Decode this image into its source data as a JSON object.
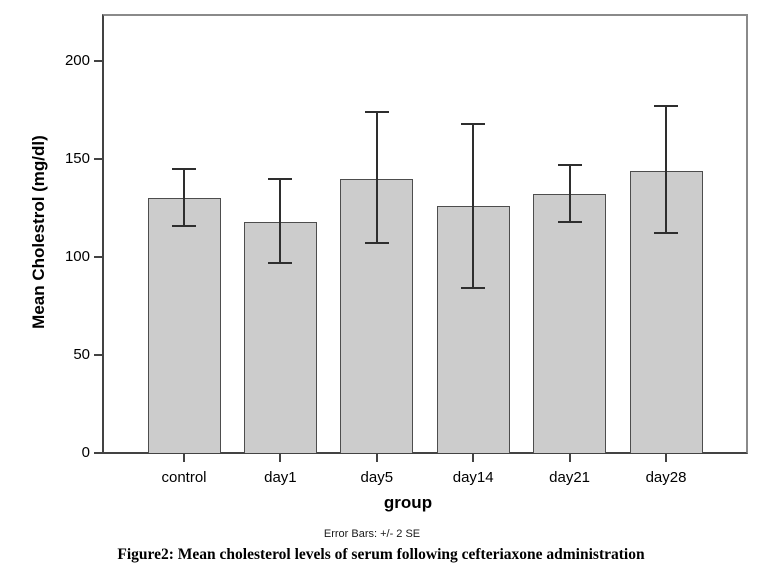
{
  "figure": {
    "caption": "Figure2: Mean cholesterol levels of serum following cefteriaxone administration",
    "footnote": "Error Bars: +/- 2 SE"
  },
  "chart_data": {
    "type": "bar",
    "title": "",
    "xlabel": "group",
    "ylabel": "Mean Cholestrol (mg/dl)",
    "categories": [
      "control",
      "day1",
      "day5",
      "day14",
      "day21",
      "day28"
    ],
    "values": [
      130,
      118,
      140,
      126,
      132,
      144
    ],
    "error_low": [
      116,
      97,
      107,
      84,
      118,
      112
    ],
    "error_high": [
      145,
      140,
      174,
      168,
      147,
      177
    ],
    "error_note": "Error Bars: +/- 2 SE",
    "yticks": [
      0,
      50,
      100,
      150,
      200
    ],
    "ylim": [
      0,
      223
    ],
    "grid": false,
    "legend": "none",
    "colors": {
      "bar_fill": "#cccccc",
      "bar_border": "#4d4d4d",
      "error_bar": "#2e2e2e",
      "axis_dark": "#434343",
      "axis_light": "#8a8a8a",
      "text": "#000000"
    }
  }
}
